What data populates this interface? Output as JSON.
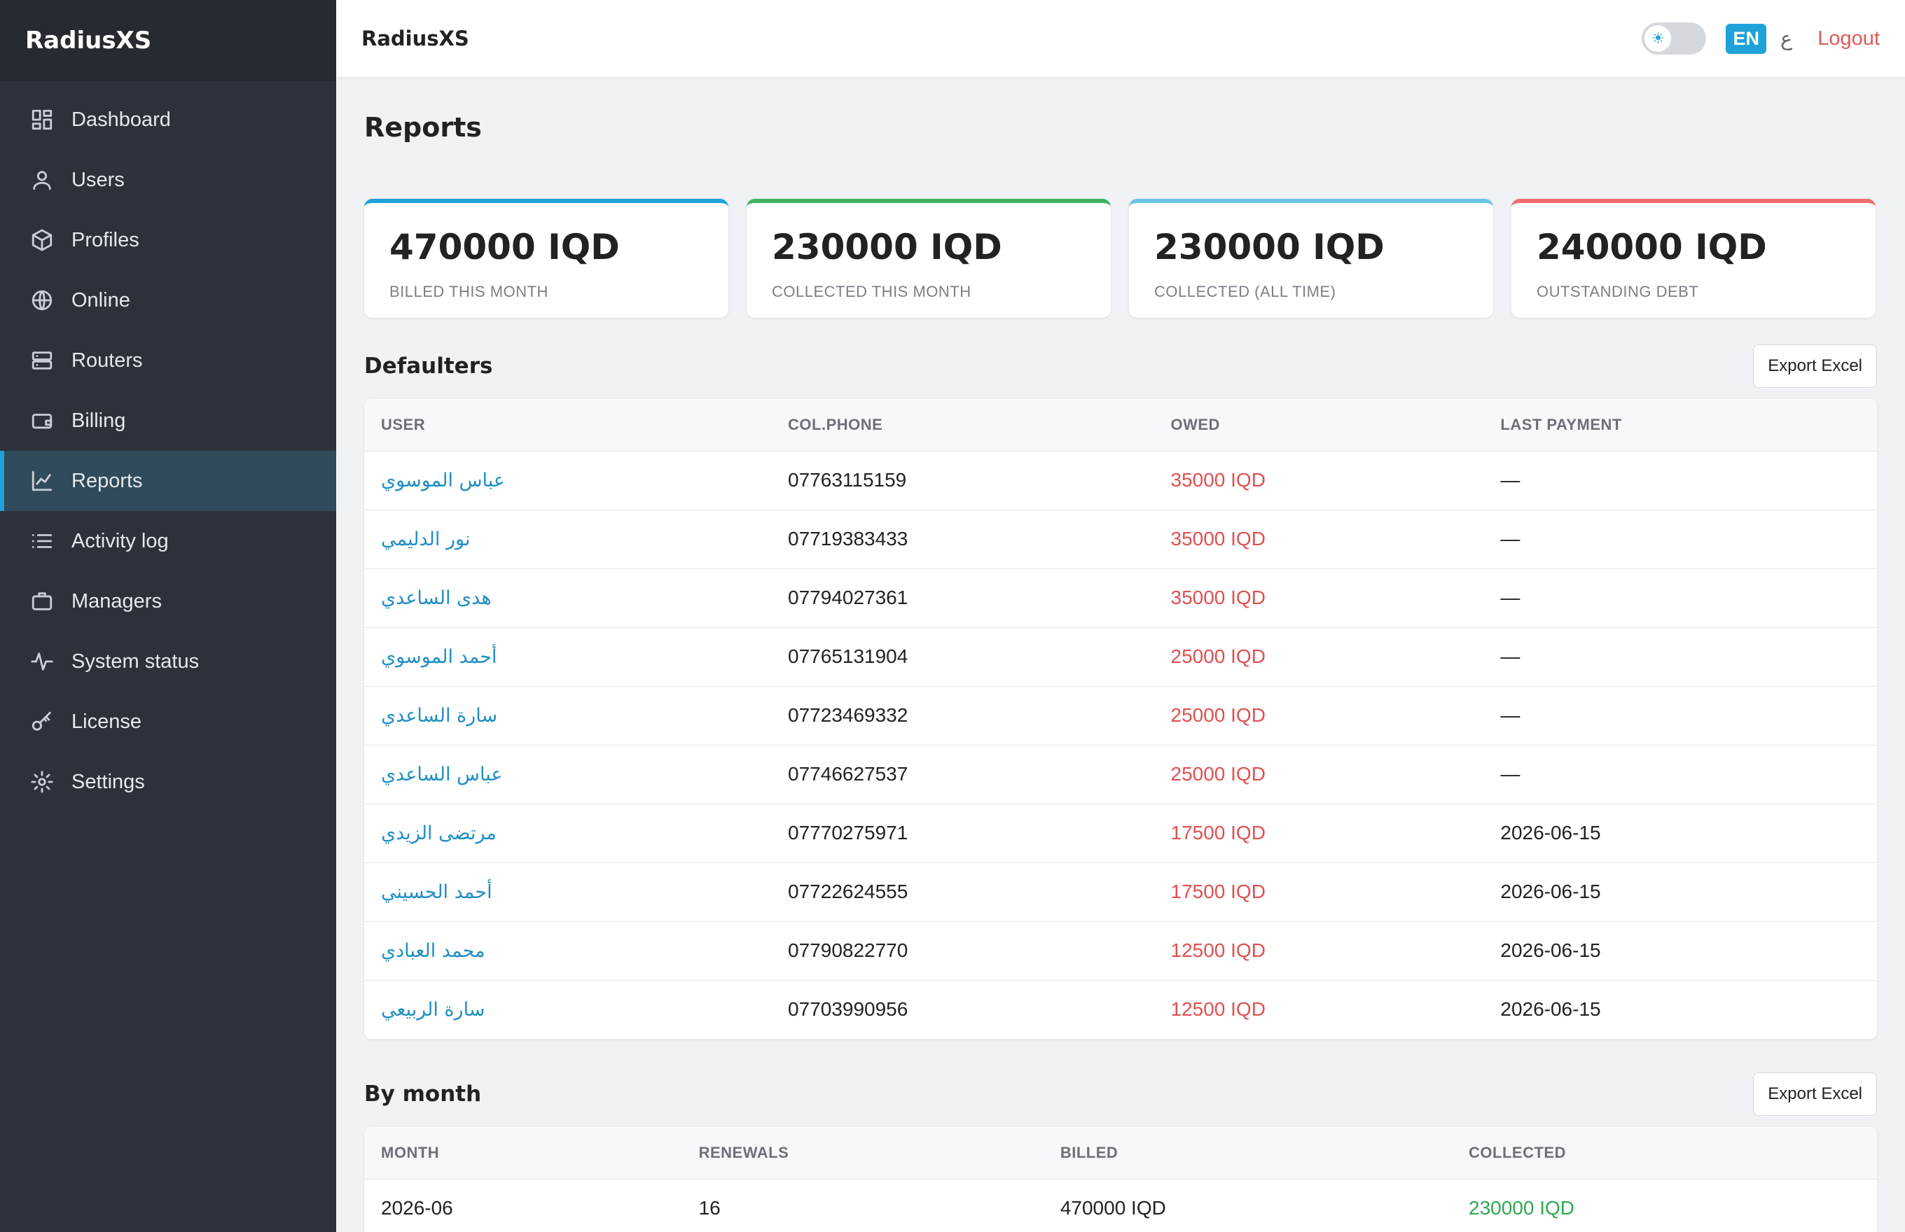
{
  "sidebar": {
    "brand": "RadiusXS",
    "items": [
      {
        "label": "Dashboard",
        "icon": "dashboard-icon"
      },
      {
        "label": "Users",
        "icon": "user-icon"
      },
      {
        "label": "Profiles",
        "icon": "box-icon"
      },
      {
        "label": "Online",
        "icon": "globe-icon"
      },
      {
        "label": "Routers",
        "icon": "server-icon"
      },
      {
        "label": "Billing",
        "icon": "wallet-icon"
      },
      {
        "label": "Reports",
        "icon": "chart-icon",
        "active": true
      },
      {
        "label": "Activity log",
        "icon": "list-icon"
      },
      {
        "label": "Managers",
        "icon": "briefcase-icon"
      },
      {
        "label": "System status",
        "icon": "pulse-icon"
      },
      {
        "label": "License",
        "icon": "key-icon"
      },
      {
        "label": "Settings",
        "icon": "gear-icon"
      }
    ]
  },
  "topbar": {
    "title": "RadiusXS",
    "lang_en": "EN",
    "lang_ar": "ع",
    "logout": "Logout"
  },
  "page": {
    "title": "Reports"
  },
  "cards": [
    {
      "value": "470000 IQD",
      "label": "BILLED THIS MONTH",
      "color": "#1fa2d8"
    },
    {
      "value": "230000 IQD",
      "label": "COLLECTED THIS MONTH",
      "color": "#3fb45f"
    },
    {
      "value": "230000 IQD",
      "label": "COLLECTED (ALL TIME)",
      "color": "#6cc3e8"
    },
    {
      "value": "240000 IQD",
      "label": "OUTSTANDING DEBT",
      "color": "#ef6b6b"
    }
  ],
  "defaulters": {
    "title": "Defaulters",
    "export_label": "Export Excel",
    "columns": [
      "USER",
      "COL.PHONE",
      "OWED",
      "LAST PAYMENT"
    ],
    "rows": [
      {
        "user": "عباس الموسوي",
        "phone": "07763115159",
        "owed": "35000 IQD",
        "last": "—"
      },
      {
        "user": "نور الدليمي",
        "phone": "07719383433",
        "owed": "35000 IQD",
        "last": "—"
      },
      {
        "user": "هدى الساعدي",
        "phone": "07794027361",
        "owed": "35000 IQD",
        "last": "—"
      },
      {
        "user": "أحمد الموسوي",
        "phone": "07765131904",
        "owed": "25000 IQD",
        "last": "—"
      },
      {
        "user": "سارة الساعدي",
        "phone": "07723469332",
        "owed": "25000 IQD",
        "last": "—"
      },
      {
        "user": "عباس الساعدي",
        "phone": "07746627537",
        "owed": "25000 IQD",
        "last": "—"
      },
      {
        "user": "مرتضى الزيدي",
        "phone": "07770275971",
        "owed": "17500 IQD",
        "last": "2026-06-15"
      },
      {
        "user": "أحمد الحسيني",
        "phone": "07722624555",
        "owed": "17500 IQD",
        "last": "2026-06-15"
      },
      {
        "user": "محمد العبادي",
        "phone": "07790822770",
        "owed": "12500 IQD",
        "last": "2026-06-15"
      },
      {
        "user": "سارة الربيعي",
        "phone": "07703990956",
        "owed": "12500 IQD",
        "last": "2026-06-15"
      }
    ]
  },
  "by_month": {
    "title": "By month",
    "export_label": "Export Excel",
    "columns": [
      "MONTH",
      "RENEWALS",
      "BILLED",
      "COLLECTED"
    ],
    "rows": [
      {
        "month": "2026-06",
        "renewals": "16",
        "billed": "470000 IQD",
        "collected": "230000 IQD"
      }
    ]
  }
}
